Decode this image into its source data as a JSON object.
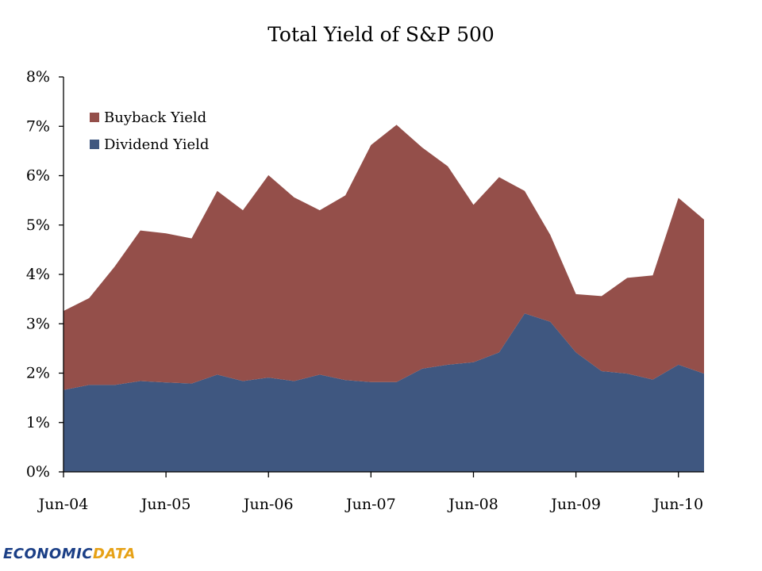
{
  "chart_data": {
    "type": "area",
    "stacked": true,
    "title": "Total Yield of S&P 500",
    "xlabel": "",
    "ylabel": "",
    "ylim": [
      0,
      8
    ],
    "y_ticks": [
      "0%",
      "1%",
      "2%",
      "3%",
      "4%",
      "5%",
      "6%",
      "7%",
      "8%"
    ],
    "y_tick_values": [
      0,
      1,
      2,
      3,
      4,
      5,
      6,
      7,
      8
    ],
    "x_ticks": [
      "Jun-04",
      "Jun-05",
      "Jun-06",
      "Jun-07",
      "Jun-08",
      "Jun-09",
      "Jun-10"
    ],
    "x_tick_indices": [
      0,
      4,
      8,
      12,
      16,
      20,
      24
    ],
    "x": [
      "Jun-04",
      "Sep-04",
      "Dec-04",
      "Mar-05",
      "Jun-05",
      "Sep-05",
      "Dec-05",
      "Mar-06",
      "Jun-06",
      "Sep-06",
      "Dec-06",
      "Mar-07",
      "Jun-07",
      "Sep-07",
      "Dec-07",
      "Mar-08",
      "Jun-08",
      "Sep-08",
      "Dec-08",
      "Mar-09",
      "Jun-09",
      "Sep-09",
      "Dec-09",
      "Mar-10",
      "Jun-10",
      "Sep-10"
    ],
    "series": [
      {
        "name": "Dividend Yield",
        "color": "#3f5780",
        "values": [
          1.66,
          1.76,
          1.76,
          1.84,
          1.81,
          1.79,
          1.97,
          1.84,
          1.91,
          1.84,
          1.97,
          1.86,
          1.82,
          1.82,
          2.09,
          2.17,
          2.22,
          2.42,
          3.21,
          3.04,
          2.42,
          2.04,
          1.99,
          1.87,
          2.17,
          1.99
        ]
      },
      {
        "name": "Buyback Yield",
        "color": "#944f4a",
        "values": [
          1.6,
          1.76,
          2.4,
          3.05,
          3.02,
          2.94,
          3.72,
          3.46,
          4.1,
          3.72,
          3.33,
          3.74,
          4.8,
          5.21,
          4.48,
          4.02,
          3.19,
          3.55,
          2.48,
          1.76,
          1.18,
          1.52,
          1.94,
          2.11,
          3.38,
          3.12
        ]
      }
    ],
    "legend": [
      "Buyback Yield",
      "Dividend Yield"
    ],
    "legend_position": "top-left",
    "grid": false
  },
  "branding": {
    "logo_part1": "ECONOMIC",
    "logo_part2": "DATA"
  }
}
